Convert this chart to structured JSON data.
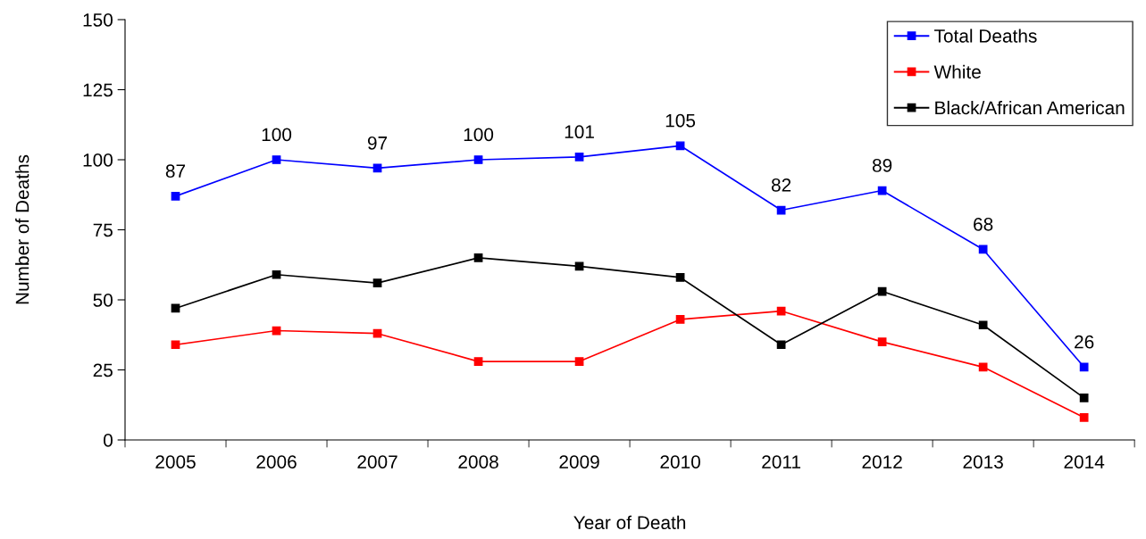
{
  "chart_data": {
    "type": "line",
    "xlabel": "Year of Death",
    "ylabel": "Number of Deaths",
    "categories": [
      "2005",
      "2006",
      "2007",
      "2008",
      "2009",
      "2010",
      "2011",
      "2012",
      "2013",
      "2014"
    ],
    "series": [
      {
        "name": "Total Deaths",
        "color": "#0000ff",
        "values": [
          87,
          100,
          97,
          100,
          101,
          105,
          82,
          89,
          68,
          26
        ],
        "value_labels": [
          "87",
          "100",
          "97",
          "100",
          "101",
          "105",
          "82",
          "89",
          "68",
          "26"
        ]
      },
      {
        "name": "White",
        "color": "#ff0000",
        "values": [
          34,
          39,
          38,
          28,
          28,
          43,
          46,
          35,
          26,
          8
        ]
      },
      {
        "name": "Black/African American",
        "color": "#000000",
        "values": [
          47,
          59,
          56,
          65,
          62,
          58,
          34,
          53,
          41,
          15
        ]
      }
    ],
    "ylim": [
      0,
      150
    ],
    "yticks": [
      0,
      25,
      50,
      75,
      100,
      125,
      150
    ],
    "grid": false,
    "legend": "top right",
    "marker": "square",
    "line_style": "solid"
  }
}
